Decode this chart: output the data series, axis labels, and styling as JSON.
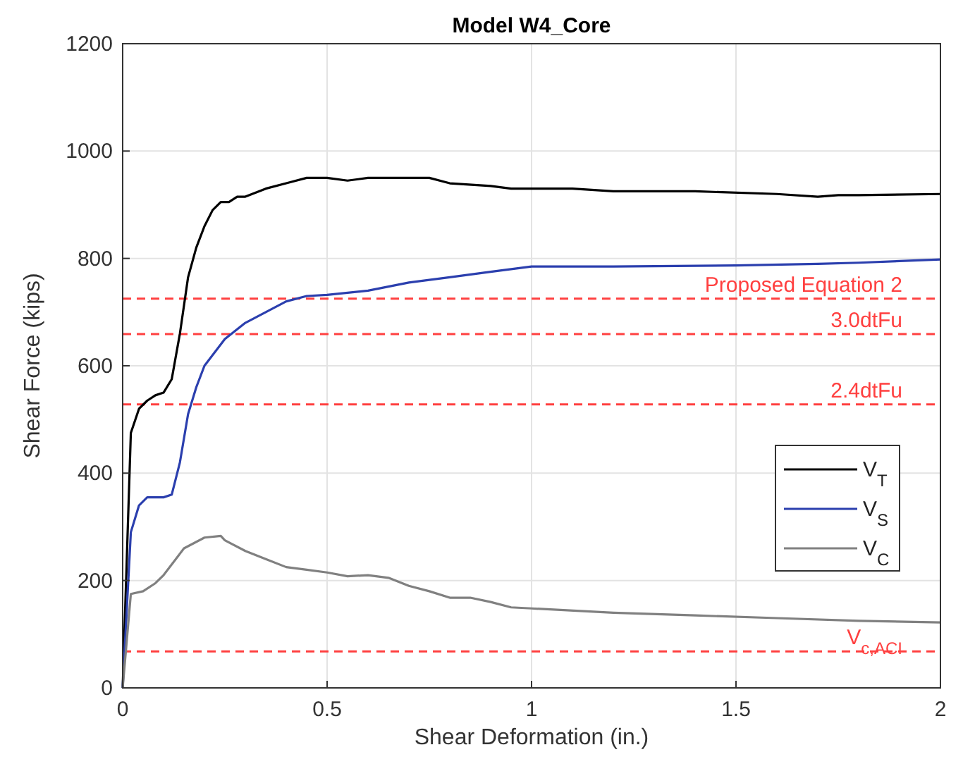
{
  "chart_data": {
    "type": "line",
    "title": "Model W4_Core",
    "xlabel": "Shear Deformation (in.)",
    "ylabel": "Shear Force (kips)",
    "xlim": [
      0,
      2
    ],
    "xticks": [
      0,
      0.5,
      1,
      1.5,
      2
    ],
    "ylim": [
      0,
      1200
    ],
    "yticks": [
      0,
      200,
      400,
      600,
      800,
      1000,
      1200
    ],
    "grid": true,
    "legend": "right",
    "marker": "none",
    "line_style": "solid",
    "series": [
      {
        "name": "V$_{T}$",
        "color": "#000000",
        "x": [
          0,
          0.02,
          0.04,
          0.06,
          0.08,
          0.1,
          0.12,
          0.14,
          0.16,
          0.18,
          0.2,
          0.22,
          0.24,
          0.26,
          0.28,
          0.3,
          0.35,
          0.4,
          0.45,
          0.5,
          0.55,
          0.6,
          0.7,
          0.75,
          0.8,
          0.9,
          0.95,
          1.0,
          1.1,
          1.2,
          1.4,
          1.6,
          1.7,
          1.75,
          1.8,
          2.0
        ],
        "values": [
          0,
          475,
          520,
          535,
          545,
          550,
          575,
          660,
          765,
          820,
          860,
          890,
          905,
          905,
          915,
          915,
          930,
          940,
          950,
          950,
          945,
          950,
          950,
          950,
          940,
          935,
          930,
          930,
          930,
          925,
          925,
          920,
          915,
          918,
          918,
          920
        ]
      },
      {
        "name": "V$_{S}$",
        "color": "#2b3fae",
        "x": [
          0,
          0.02,
          0.04,
          0.06,
          0.08,
          0.1,
          0.12,
          0.14,
          0.16,
          0.18,
          0.2,
          0.25,
          0.3,
          0.35,
          0.4,
          0.45,
          0.5,
          0.6,
          0.7,
          0.8,
          0.9,
          1.0,
          1.2,
          1.5,
          1.7,
          1.8,
          2.0
        ],
        "values": [
          0,
          290,
          340,
          355,
          355,
          355,
          360,
          420,
          510,
          560,
          600,
          650,
          680,
          700,
          720,
          730,
          732,
          740,
          755,
          765,
          775,
          785,
          785,
          787,
          790,
          792,
          798
        ]
      },
      {
        "name": "V$_{C}$",
        "color": "#808080",
        "x": [
          0,
          0.02,
          0.05,
          0.08,
          0.1,
          0.15,
          0.2,
          0.24,
          0.25,
          0.3,
          0.35,
          0.4,
          0.45,
          0.5,
          0.55,
          0.6,
          0.65,
          0.7,
          0.75,
          0.8,
          0.85,
          0.9,
          0.95,
          1.0,
          1.2,
          1.4,
          1.6,
          1.8,
          2.0
        ],
        "values": [
          0,
          175,
          180,
          195,
          210,
          260,
          280,
          283,
          275,
          255,
          240,
          225,
          220,
          215,
          208,
          210,
          205,
          190,
          180,
          168,
          168,
          160,
          150,
          148,
          140,
          135,
          130,
          125,
          122
        ]
      }
    ],
    "ref_lines": [
      {
        "axis": "y",
        "value": 725,
        "label": "Proposed Equation 2",
        "color": "#ff4040",
        "line_style": "dashed"
      },
      {
        "axis": "y",
        "value": 659,
        "label": "3.0dtFu",
        "color": "#ff4040",
        "line_style": "dashed"
      },
      {
        "axis": "y",
        "value": 528,
        "label": "2.4dtFu",
        "color": "#ff4040",
        "line_style": "dashed"
      },
      {
        "axis": "y",
        "value": 68,
        "label": "V$_{c,ACI}$",
        "color": "#ff4040",
        "line_style": "dashed"
      }
    ]
  }
}
